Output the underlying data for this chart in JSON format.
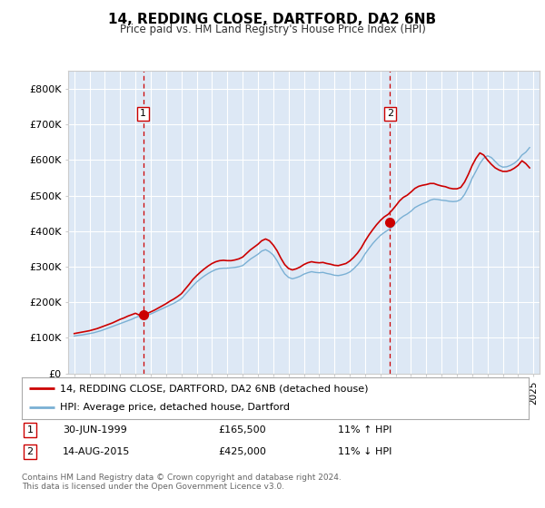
{
  "title": "14, REDDING CLOSE, DARTFORD, DA2 6NB",
  "subtitle": "Price paid vs. HM Land Registry's House Price Index (HPI)",
  "plot_bg_color": "#dde8f5",
  "ylim": [
    0,
    850000
  ],
  "yticks": [
    0,
    100000,
    200000,
    300000,
    400000,
    500000,
    600000,
    700000,
    800000
  ],
  "ytick_labels": [
    "£0",
    "£100K",
    "£200K",
    "£300K",
    "£400K",
    "£500K",
    "£600K",
    "£700K",
    "£800K"
  ],
  "xlim_start": 1994.6,
  "xlim_end": 2025.4,
  "xlabel_years": [
    1995,
    1996,
    1997,
    1998,
    1999,
    2000,
    2001,
    2002,
    2003,
    2004,
    2005,
    2006,
    2007,
    2008,
    2009,
    2010,
    2011,
    2012,
    2013,
    2014,
    2015,
    2016,
    2017,
    2018,
    2019,
    2020,
    2021,
    2022,
    2023,
    2024,
    2025
  ],
  "sale1_x": 1999.5,
  "sale1_y": 165500,
  "sale1_label": "1",
  "sale1_date": "30-JUN-1999",
  "sale1_price": "£165,500",
  "sale1_hpi": "11% ↑ HPI",
  "sale2_x": 2015.62,
  "sale2_y": 425000,
  "sale2_label": "2",
  "sale2_date": "14-AUG-2015",
  "sale2_price": "£425,000",
  "sale2_hpi": "11% ↓ HPI",
  "red_line_color": "#cc0000",
  "blue_line_color": "#7ab0d4",
  "vline_color": "#cc0000",
  "legend_label_red": "14, REDDING CLOSE, DARTFORD, DA2 6NB (detached house)",
  "legend_label_blue": "HPI: Average price, detached house, Dartford",
  "footer": "Contains HM Land Registry data © Crown copyright and database right 2024.\nThis data is licensed under the Open Government Licence v3.0.",
  "hpi_x": [
    1995.0,
    1995.25,
    1995.5,
    1995.75,
    1996.0,
    1996.25,
    1996.5,
    1996.75,
    1997.0,
    1997.25,
    1997.5,
    1997.75,
    1998.0,
    1998.25,
    1998.5,
    1998.75,
    1999.0,
    1999.25,
    1999.5,
    1999.75,
    2000.0,
    2000.25,
    2000.5,
    2000.75,
    2001.0,
    2001.25,
    2001.5,
    2001.75,
    2002.0,
    2002.25,
    2002.5,
    2002.75,
    2003.0,
    2003.25,
    2003.5,
    2003.75,
    2004.0,
    2004.25,
    2004.5,
    2004.75,
    2005.0,
    2005.25,
    2005.5,
    2005.75,
    2006.0,
    2006.25,
    2006.5,
    2006.75,
    2007.0,
    2007.25,
    2007.5,
    2007.75,
    2008.0,
    2008.25,
    2008.5,
    2008.75,
    2009.0,
    2009.25,
    2009.5,
    2009.75,
    2010.0,
    2010.25,
    2010.5,
    2010.75,
    2011.0,
    2011.25,
    2011.5,
    2011.75,
    2012.0,
    2012.25,
    2012.5,
    2012.75,
    2013.0,
    2013.25,
    2013.5,
    2013.75,
    2014.0,
    2014.25,
    2014.5,
    2014.75,
    2015.0,
    2015.25,
    2015.5,
    2015.75,
    2016.0,
    2016.25,
    2016.5,
    2016.75,
    2017.0,
    2017.25,
    2017.5,
    2017.75,
    2018.0,
    2018.25,
    2018.5,
    2018.75,
    2019.0,
    2019.25,
    2019.5,
    2019.75,
    2020.0,
    2020.25,
    2020.5,
    2020.75,
    2021.0,
    2021.25,
    2021.5,
    2021.75,
    2022.0,
    2022.25,
    2022.5,
    2022.75,
    2023.0,
    2023.25,
    2023.5,
    2023.75,
    2024.0,
    2024.25,
    2024.5,
    2024.75
  ],
  "hpi_y": [
    105000,
    107000,
    108000,
    110000,
    112000,
    114000,
    117000,
    120000,
    124000,
    128000,
    132000,
    136000,
    140000,
    144000,
    148000,
    152000,
    157000,
    161000,
    160000,
    163000,
    167000,
    172000,
    177000,
    182000,
    187000,
    192000,
    197000,
    203000,
    210000,
    222000,
    234000,
    246000,
    257000,
    266000,
    274000,
    281000,
    287000,
    292000,
    295000,
    296000,
    296000,
    297000,
    298000,
    300000,
    303000,
    312000,
    321000,
    328000,
    335000,
    344000,
    348000,
    342000,
    333000,
    317000,
    297000,
    280000,
    270000,
    266000,
    269000,
    273000,
    279000,
    283000,
    286000,
    284000,
    283000,
    284000,
    281000,
    279000,
    276000,
    275000,
    277000,
    280000,
    285000,
    294000,
    305000,
    318000,
    336000,
    351000,
    365000,
    377000,
    388000,
    396000,
    403000,
    411000,
    422000,
    434000,
    442000,
    448000,
    456000,
    466000,
    472000,
    477000,
    481000,
    487000,
    490000,
    489000,
    487000,
    486000,
    484000,
    483000,
    484000,
    489000,
    503000,
    524000,
    549000,
    569000,
    590000,
    605000,
    612000,
    607000,
    596000,
    585000,
    580000,
    581000,
    585000,
    591000,
    600000,
    614000,
    622000,
    635000
  ],
  "red_x": [
    1995.0,
    1995.25,
    1995.5,
    1995.75,
    1996.0,
    1996.25,
    1996.5,
    1996.75,
    1997.0,
    1997.25,
    1997.5,
    1997.75,
    1998.0,
    1998.25,
    1998.5,
    1998.75,
    1999.0,
    1999.25,
    1999.5,
    1999.75,
    2000.0,
    2000.25,
    2000.5,
    2000.75,
    2001.0,
    2001.25,
    2001.5,
    2001.75,
    2002.0,
    2002.25,
    2002.5,
    2002.75,
    2003.0,
    2003.25,
    2003.5,
    2003.75,
    2004.0,
    2004.25,
    2004.5,
    2004.75,
    2005.0,
    2005.25,
    2005.5,
    2005.75,
    2006.0,
    2006.25,
    2006.5,
    2006.75,
    2007.0,
    2007.25,
    2007.5,
    2007.75,
    2008.0,
    2008.25,
    2008.5,
    2008.75,
    2009.0,
    2009.25,
    2009.5,
    2009.75,
    2010.0,
    2010.25,
    2010.5,
    2010.75,
    2011.0,
    2011.25,
    2011.5,
    2011.75,
    2012.0,
    2012.25,
    2012.5,
    2012.75,
    2013.0,
    2013.25,
    2013.5,
    2013.75,
    2014.0,
    2014.25,
    2014.5,
    2014.75,
    2015.0,
    2015.25,
    2015.5,
    2015.75,
    2016.0,
    2016.25,
    2016.5,
    2016.75,
    2017.0,
    2017.25,
    2017.5,
    2017.75,
    2018.0,
    2018.25,
    2018.5,
    2018.75,
    2019.0,
    2019.25,
    2019.5,
    2019.75,
    2020.0,
    2020.25,
    2020.5,
    2020.75,
    2021.0,
    2021.25,
    2021.5,
    2021.75,
    2022.0,
    2022.25,
    2022.5,
    2022.75,
    2023.0,
    2023.25,
    2023.5,
    2023.75,
    2024.0,
    2024.25,
    2024.5,
    2024.75
  ],
  "red_y": [
    112000,
    114000,
    116000,
    118000,
    120000,
    123000,
    126000,
    130000,
    134000,
    138000,
    142000,
    147000,
    152000,
    156000,
    161000,
    165000,
    169000,
    164000,
    165500,
    168000,
    173000,
    178000,
    184000,
    190000,
    196000,
    203000,
    209000,
    216000,
    224000,
    237000,
    250000,
    264000,
    275000,
    285000,
    294000,
    302000,
    309000,
    314000,
    317000,
    318000,
    317000,
    317000,
    319000,
    322000,
    327000,
    337000,
    347000,
    355000,
    363000,
    373000,
    378000,
    373000,
    361000,
    345000,
    324000,
    306000,
    295000,
    291000,
    294000,
    299000,
    306000,
    311000,
    314000,
    312000,
    311000,
    312000,
    309000,
    307000,
    304000,
    303000,
    306000,
    309000,
    316000,
    326000,
    338000,
    353000,
    372000,
    389000,
    404000,
    418000,
    430000,
    440000,
    447000,
    458000,
    471000,
    485000,
    495000,
    501000,
    510000,
    520000,
    526000,
    529000,
    531000,
    534000,
    534000,
    530000,
    527000,
    525000,
    521000,
    519000,
    519000,
    523000,
    538000,
    560000,
    585000,
    605000,
    620000,
    614000,
    600000,
    588000,
    578000,
    572000,
    568000,
    568000,
    571000,
    577000,
    585000,
    598000,
    590000,
    578000
  ]
}
